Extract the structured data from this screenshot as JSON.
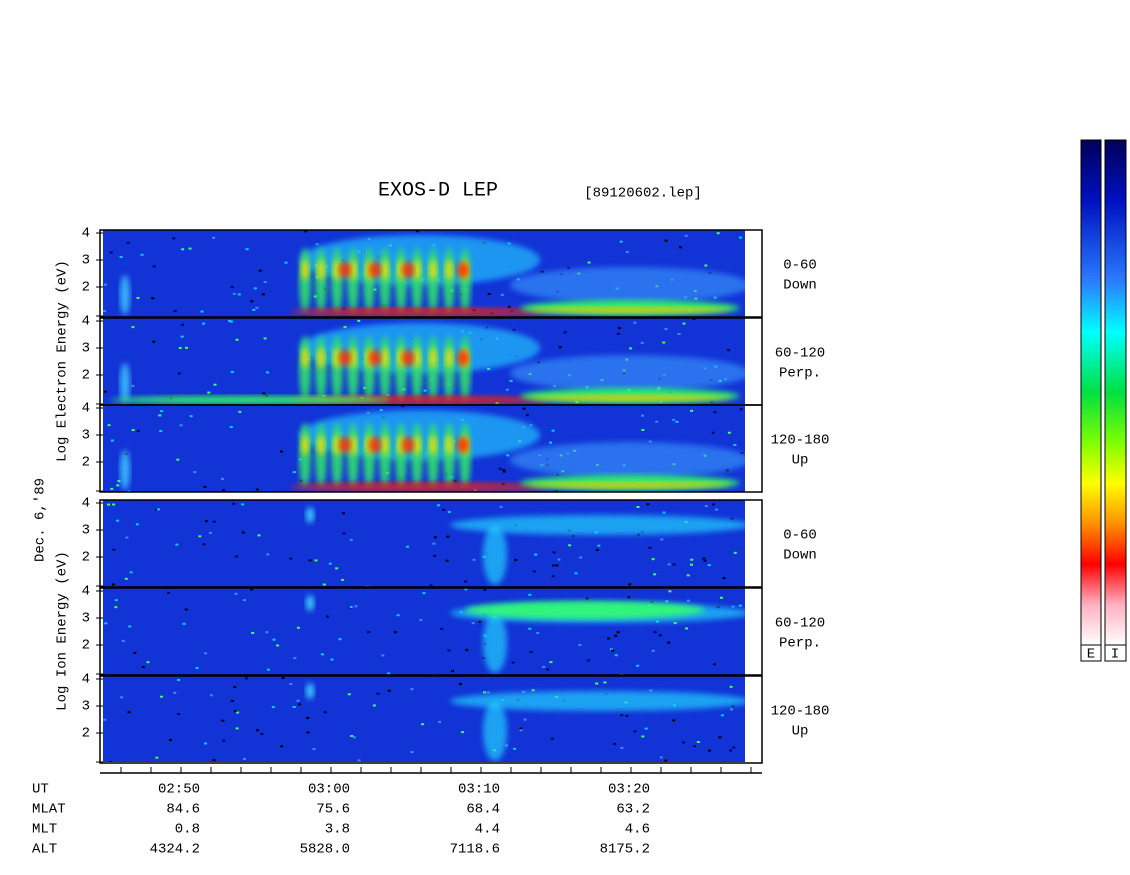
{
  "title": "EXOS-D LEP",
  "file": "[89120602.lep]",
  "date_label": "Dec. 6,'89",
  "electron_label": "Log Electron Energy (eV)",
  "ion_label": "Log Ion Energy (eV)",
  "panel_ticks": [
    "4",
    "3",
    "2"
  ],
  "pitch_bins": [
    {
      "range": "0-60",
      "dir": "Down"
    },
    {
      "range": "60-120",
      "dir": "Perp."
    },
    {
      "range": "120-180",
      "dir": "Up"
    }
  ],
  "time_axis": {
    "rows": [
      {
        "label": "UT",
        "values": [
          "02:50",
          "03:00",
          "03:10",
          "03:20"
        ]
      },
      {
        "label": "MLAT",
        "values": [
          "84.6",
          "75.6",
          "68.4",
          "63.2"
        ]
      },
      {
        "label": "MLT",
        "values": [
          "0.8",
          "3.8",
          "4.4",
          "4.6"
        ]
      },
      {
        "label": "ALT",
        "values": [
          "4324.2",
          "5828.0",
          "7118.6",
          "8175.2"
        ]
      }
    ]
  },
  "colorbar_labels": [
    "E",
    "I"
  ]
}
